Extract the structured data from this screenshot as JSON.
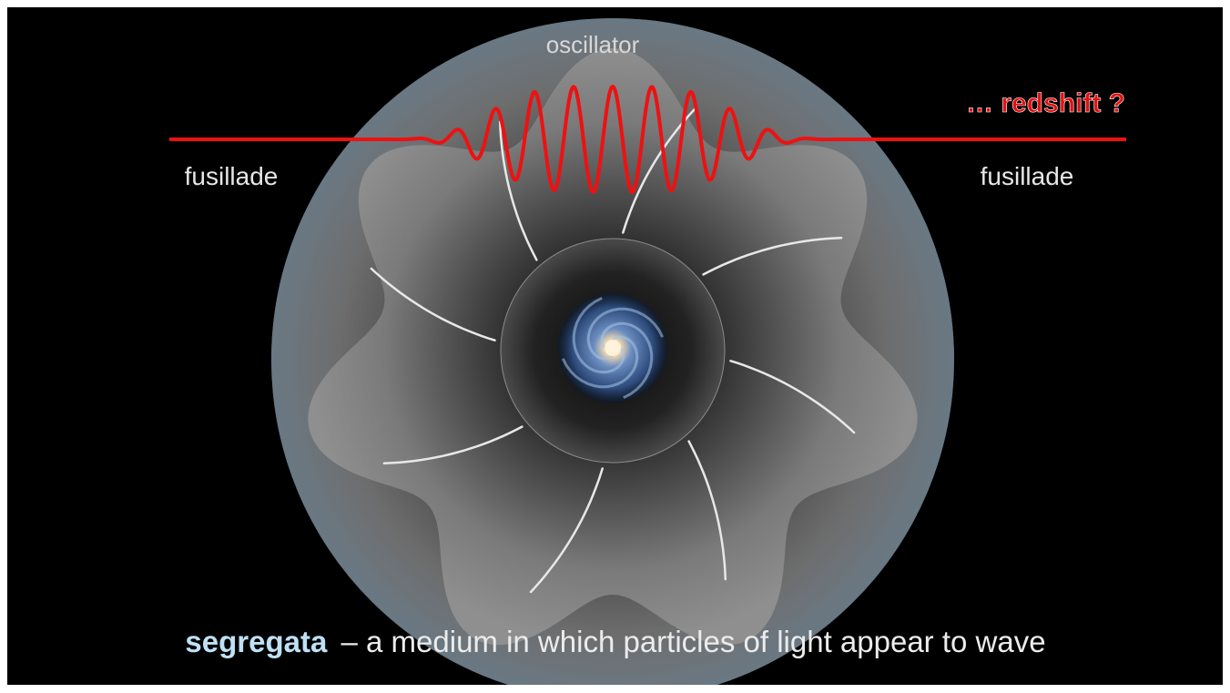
{
  "labels": {
    "oscillator": "oscillator",
    "redshift": "… redshift ?",
    "fusillade_left": "fusillade",
    "fusillade_right": "fusillade"
  },
  "caption": {
    "term": "segregata",
    "definition": "– a medium in which particles of light appear to wave"
  }
}
